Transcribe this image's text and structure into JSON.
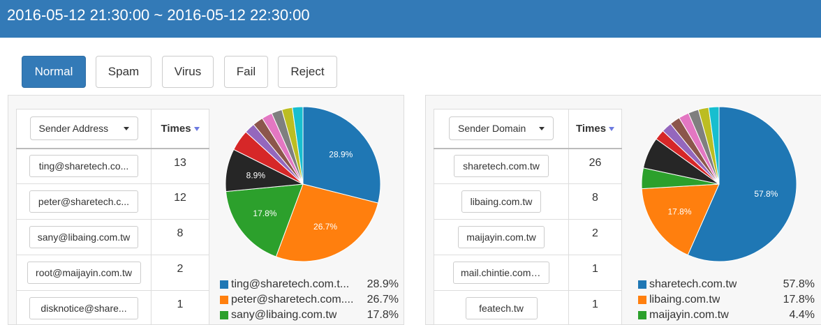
{
  "header": {
    "title": "2016-05-12 21:30:00 ~ 2016-05-12 22:30:00"
  },
  "tabs": [
    {
      "label": "Normal",
      "active": true
    },
    {
      "label": "Spam",
      "active": false
    },
    {
      "label": "Virus",
      "active": false
    },
    {
      "label": "Fail",
      "active": false
    },
    {
      "label": "Reject",
      "active": false
    }
  ],
  "colors": {
    "topbar": "#337ab7",
    "pie": [
      "#1f77b4",
      "#ff7f0e",
      "#2ca02c",
      "#262626",
      "#d62728",
      "#9467bd",
      "#8c564b",
      "#e377c2",
      "#7f7f7f",
      "#bcbd22",
      "#17becf"
    ],
    "redaction": "#9b3fae"
  },
  "left_panel": {
    "dropdown": "Sender Address",
    "times_header": "Times",
    "rows": [
      {
        "address": "ting@sharetech.co...",
        "times": "13"
      },
      {
        "address": "peter@sharetech.c...",
        "times": "12"
      },
      {
        "address": "sany@libaing.com.tw",
        "times": "8"
      },
      {
        "address": "root@maijayin.com.tw",
        "times": "2"
      },
      {
        "address": "disknotice@share...",
        "times": "1"
      }
    ],
    "legend": [
      {
        "label": "ting@sharetech.com.t...",
        "pct": "28.9%"
      },
      {
        "label": "peter@sharetech.com....",
        "pct": "26.7%"
      },
      {
        "label": "sany@libaing.com.tw",
        "pct": "17.8%"
      }
    ]
  },
  "right_panel": {
    "dropdown": "Sender Domain",
    "times_header": "Times",
    "rows": [
      {
        "address": "sharetech.com.tw",
        "times": "26"
      },
      {
        "address": "libaing.com.tw",
        "times": "8"
      },
      {
        "address": "maijayin.com.tw",
        "times": "2"
      },
      {
        "address": "mail.chintie.com.tw",
        "times": "1"
      },
      {
        "address": "featech.tw",
        "times": "1"
      }
    ],
    "legend": [
      {
        "label": "sharetech.com.tw",
        "pct": "57.8%"
      },
      {
        "label": "libaing.com.tw",
        "pct": "17.8%"
      },
      {
        "label": "maijayin.com.tw",
        "pct": "4.4%"
      }
    ]
  },
  "chart_data": [
    {
      "type": "pie",
      "title": "",
      "series": [
        {
          "values": [
            28.9,
            26.7,
            17.8,
            8.9,
            4.4,
            2.2,
            2.2,
            2.2,
            2.2,
            2.2,
            2.2
          ]
        }
      ],
      "labels": [
        "28.9%",
        "26.7%",
        "17.8%",
        "8.9%",
        "",
        "",
        "",
        "",
        "",
        "",
        ""
      ]
    },
    {
      "type": "pie",
      "title": "",
      "series": [
        {
          "values": [
            57.8,
            17.8,
            4.4,
            6.7,
            2.2,
            2.2,
            2.2,
            2.2,
            2.2,
            2.2,
            2.2
          ]
        }
      ],
      "labels": [
        "57.8%",
        "17.8%",
        "",
        "",
        "",
        "",
        "",
        "",
        "",
        "",
        ""
      ]
    }
  ]
}
